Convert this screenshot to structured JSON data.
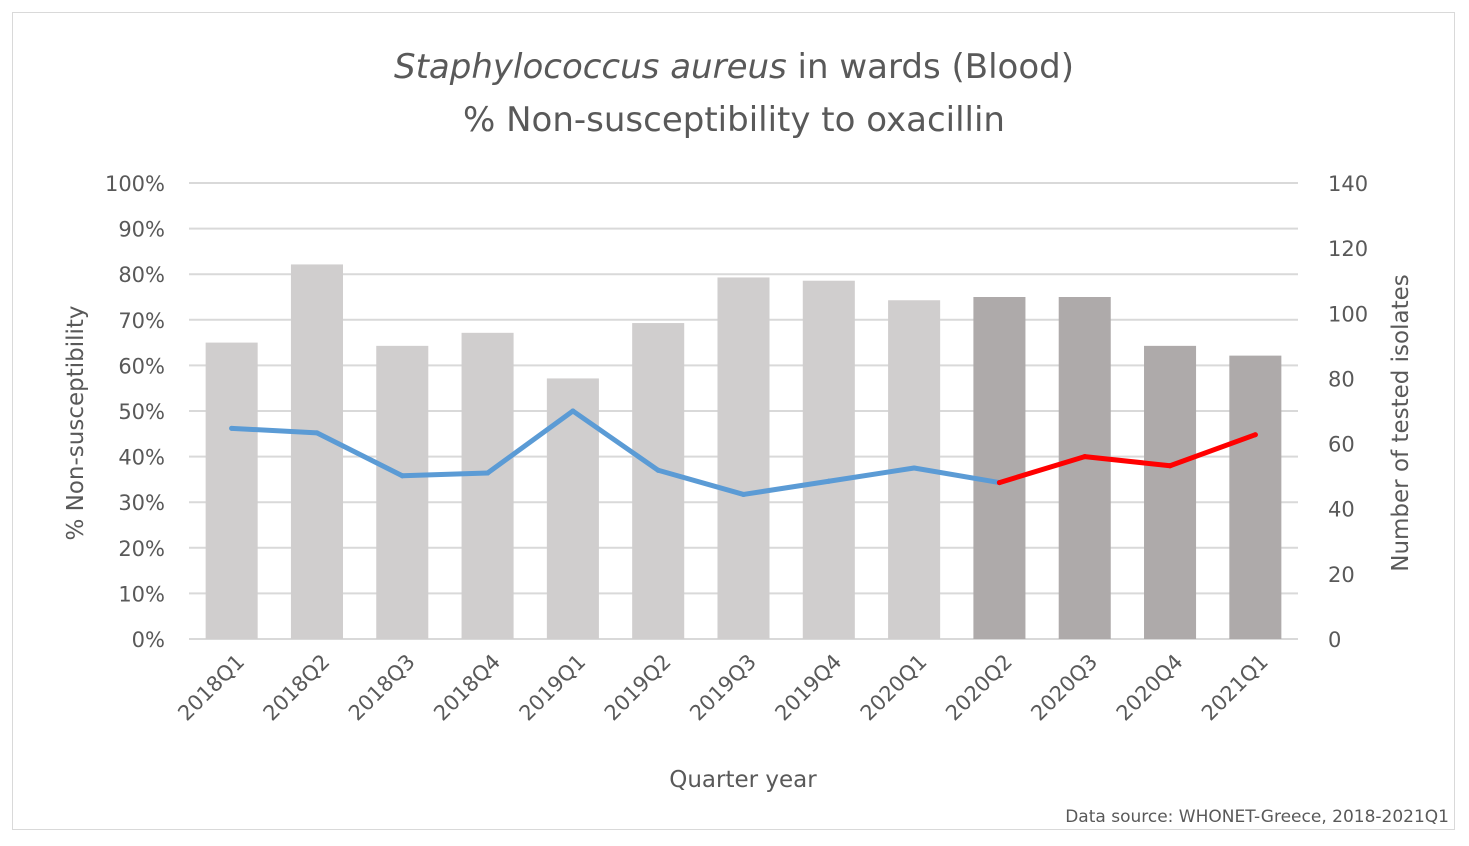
{
  "chart_data": {
    "type": "bar",
    "title_italic": "Staphylococcus aureus",
    "title_rest": " in wards (Blood)",
    "subtitle": "% Non-susceptibility to oxacillin",
    "xlabel": "Quarter year",
    "ylabel_left": "% Non-susceptibility",
    "ylabel_right": "Number of tested isolates",
    "source": "Data source: WHONET-Greece, 2018-2021Q1",
    "categories": [
      "2018Q1",
      "2018Q2",
      "2018Q3",
      "2018Q4",
      "2019Q1",
      "2019Q2",
      "2019Q3",
      "2019Q4",
      "2020Q1",
      "2020Q2",
      "2020Q3",
      "2020Q4",
      "2021Q1"
    ],
    "ylim_left": [
      0,
      100
    ],
    "ylim_right": [
      0,
      140
    ],
    "yticks_left": [
      "0%",
      "10%",
      "20%",
      "30%",
      "40%",
      "50%",
      "60%",
      "70%",
      "80%",
      "90%",
      "100%"
    ],
    "yticks_right": [
      "0",
      "20",
      "40",
      "60",
      "80",
      "100",
      "120",
      "140"
    ],
    "grid": true,
    "series": [
      {
        "name": "Number of tested isolates",
        "kind": "bar",
        "axis": "right",
        "values": [
          91,
          115,
          90,
          94,
          80,
          97,
          111,
          110,
          104,
          105,
          105,
          90,
          87
        ],
        "colors": [
          "#d0cece",
          "#d0cece",
          "#d0cece",
          "#d0cece",
          "#d0cece",
          "#d0cece",
          "#d0cece",
          "#d0cece",
          "#d0cece",
          "#aeaaaa",
          "#aeaaaa",
          "#aeaaaa",
          "#aeaaaa"
        ]
      },
      {
        "name": "% Non-susceptibility",
        "kind": "line",
        "axis": "left",
        "values": [
          46.2,
          45.2,
          35.8,
          36.4,
          50.0,
          37.0,
          31.7,
          34.6,
          37.5,
          34.3,
          40.0,
          38.0,
          44.8
        ],
        "segment_colors": [
          "#5b9bd5",
          "#5b9bd5",
          "#5b9bd5",
          "#5b9bd5",
          "#5b9bd5",
          "#5b9bd5",
          "#5b9bd5",
          "#5b9bd5",
          "#5b9bd5",
          "#ff0000",
          "#ff0000",
          "#ff0000"
        ]
      }
    ]
  },
  "colors": {
    "grid": "#d9d9d9",
    "text": "#595959"
  }
}
